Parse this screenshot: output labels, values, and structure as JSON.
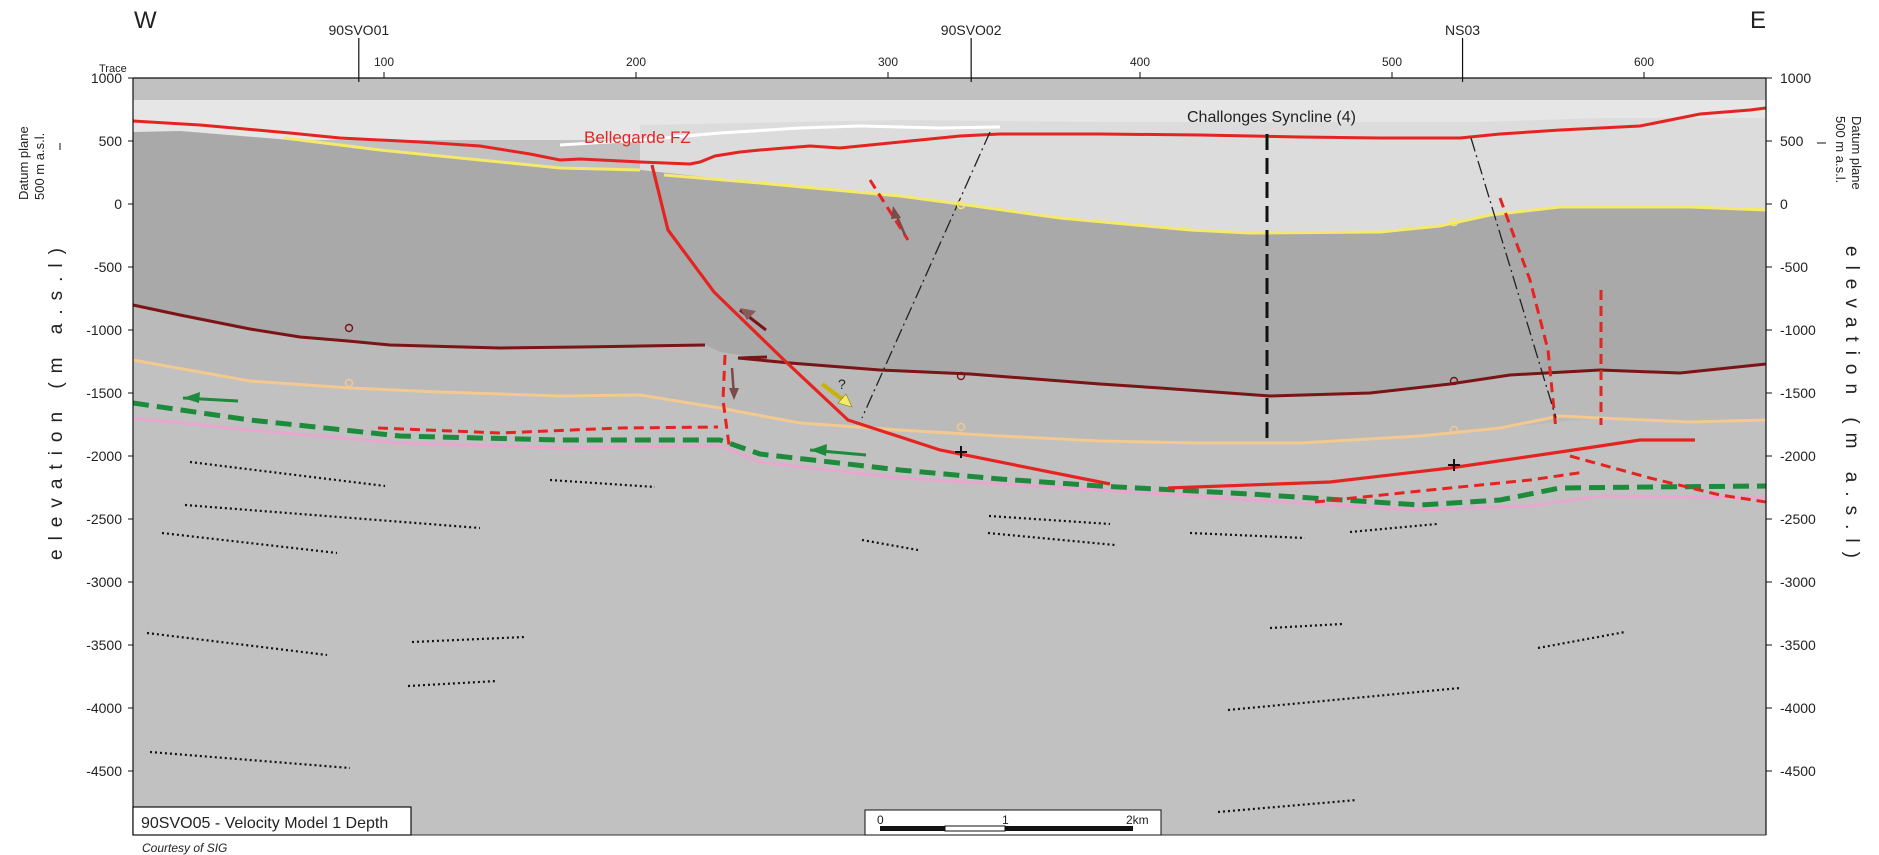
{
  "header": {
    "west_label": "W",
    "east_label": "E",
    "wells": [
      {
        "name": "90SVO01",
        "trace": 90
      },
      {
        "name": "90SVO02",
        "trace": 333
      },
      {
        "name": "NS03",
        "trace": 528
      }
    ],
    "trace_axis": {
      "label": "Trace",
      "ticks": [
        "100",
        "200",
        "300",
        "400",
        "500",
        "600"
      ]
    }
  },
  "depth_axis": {
    "ticks": [
      "1000",
      "500",
      "0",
      "-500",
      "-1000",
      "-1500",
      "-2000",
      "-2500",
      "-3000",
      "-3500",
      "-4000",
      "-4500"
    ],
    "left_title": "elevation (m a.s.l)",
    "right_title": "elevation (m a.s.l)",
    "datum_line1": "Datum plane",
    "datum_line2": "500 m a.s.l."
  },
  "annotations": {
    "fault_zone": "Bellegarde FZ",
    "syncline": "Challonges Syncline (4)",
    "question_mark": "?",
    "model_title": "90SVO05 - Velocity Model 1 Depth",
    "credit": "Courtesy of SIG"
  },
  "scale_bar": {
    "labels": [
      "0",
      "1",
      "2km"
    ]
  },
  "colors": {
    "fault": "#e52421",
    "fault_dashed": "#e52421",
    "horizon_yellow": "#f4e96a",
    "horizon_darkred": "#7b1416",
    "horizon_tan": "#f2c98f",
    "horizon_green": "#1e8a3c",
    "horizon_pink": "#e9a6cf",
    "layer_top": "#e4e4e4",
    "layer_dark": "#a9a9a9",
    "layer_mid": "#bdbdbd",
    "layer_deep": "#c1c1c1"
  }
}
